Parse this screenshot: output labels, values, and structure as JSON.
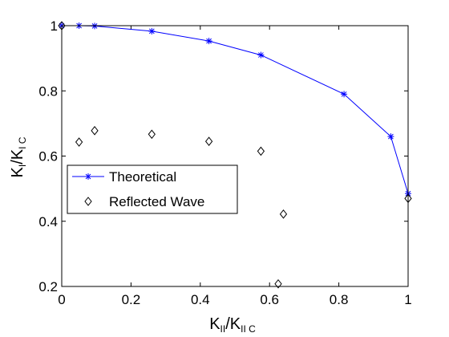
{
  "chart_data": {
    "type": "line",
    "title": "",
    "xlabel": {
      "main": "K",
      "sub1": "II",
      "mid": "/K",
      "sub2": "II C"
    },
    "ylabel": {
      "main": "K",
      "sub1": "I",
      "mid": "/K",
      "sub2": "I C"
    },
    "xlim": [
      0,
      1
    ],
    "ylim": [
      0.2,
      1.0
    ],
    "xticks": [
      0,
      0.2,
      0.4,
      0.6,
      0.8,
      1
    ],
    "xtick_labels": [
      "0",
      "0.2",
      "0.4",
      "0.6",
      "0.8",
      "1"
    ],
    "yticks": [
      0.2,
      0.4,
      0.6,
      0.8,
      1.0
    ],
    "ytick_labels": [
      "0.2",
      "0.4",
      "0.6",
      "0.8",
      "1"
    ],
    "grid": false,
    "legend": "center-left",
    "series": [
      {
        "name": "Theoretical",
        "type": "line",
        "marker": "asterisk",
        "color": "#0000ff",
        "x": [
          0,
          0.05,
          0.095,
          0.26,
          0.425,
          0.575,
          0.815,
          0.95,
          1.0
        ],
        "y": [
          1.0,
          1.0,
          0.999,
          0.983,
          0.953,
          0.91,
          0.79,
          0.66,
          0.485
        ]
      },
      {
        "name": "Reflected Wave",
        "type": "scatter",
        "marker": "diamond",
        "color": "#000000",
        "x": [
          0,
          0.05,
          0.095,
          0.26,
          0.425,
          0.575,
          0.64,
          0.625,
          1.0
        ],
        "y": [
          1.0,
          0.643,
          0.678,
          0.667,
          0.645,
          0.615,
          0.422,
          0.208,
          0.47
        ]
      }
    ]
  }
}
